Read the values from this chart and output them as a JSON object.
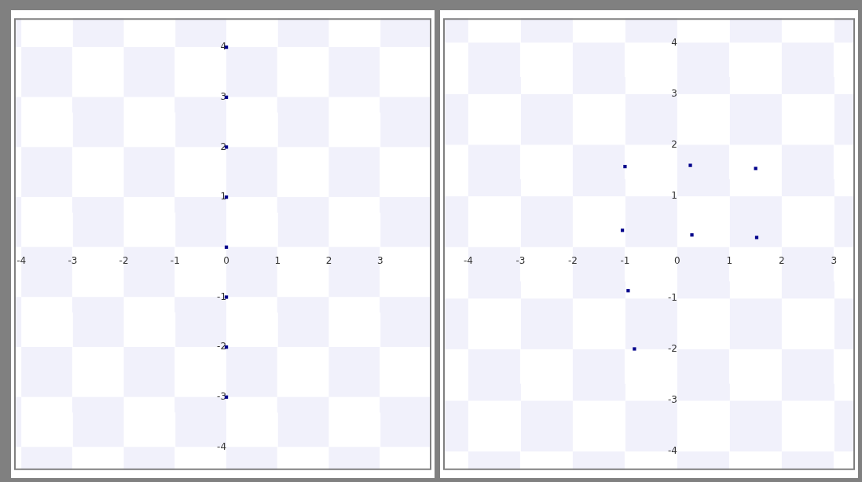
{
  "chart_data": [
    {
      "type": "scatter",
      "x": [
        0,
        0,
        0,
        0,
        0,
        0,
        0,
        0
      ],
      "values": [
        4,
        3,
        2,
        1,
        0,
        -1,
        -2,
        -3
      ],
      "color": "#00008b",
      "marker": "square",
      "xlim": [
        -4.14,
        4.0
      ],
      "ylim": [
        -4.46,
        4.58
      ],
      "xticks": [
        -4,
        -3,
        -2,
        -1,
        0,
        1,
        2,
        3
      ],
      "yticks": [
        -4,
        -3,
        -2,
        -1,
        1,
        2,
        3,
        4
      ]
    },
    {
      "type": "scatter",
      "x": [
        -1.0,
        0.25,
        1.5,
        -1.05,
        0.28,
        1.52,
        -0.94,
        -0.82
      ],
      "values": [
        1.58,
        1.6,
        1.54,
        0.33,
        0.24,
        0.19,
        -0.85,
        -1.99
      ],
      "color": "#00008b",
      "marker": "square",
      "xlim": [
        -4.48,
        3.4
      ],
      "ylim": [
        -4.36,
        4.48
      ],
      "xticks": [
        -4,
        -3,
        -2,
        -1,
        0,
        1,
        2,
        3
      ],
      "yticks": [
        -4,
        -3,
        -2,
        -1,
        1,
        2,
        3,
        4
      ]
    }
  ]
}
